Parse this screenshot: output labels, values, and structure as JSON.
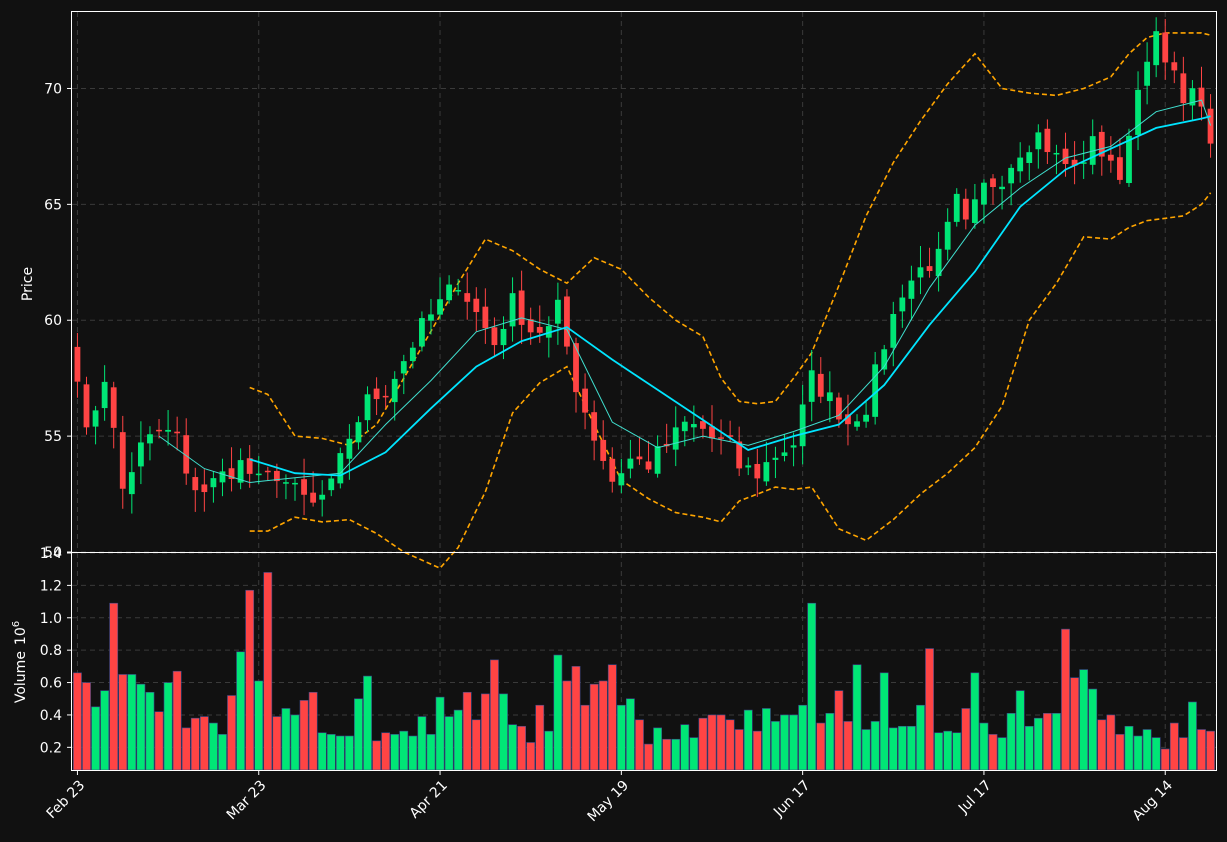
{
  "colors": {
    "background": "#111111",
    "up": "#00e676",
    "down": "#ff4444",
    "ma_fast": "#40e0d0",
    "ma_slow": "#00e5ff",
    "bands": "#ffa500",
    "grid": "#3a3a3a",
    "axes": "#ffffff"
  },
  "chart_data": [
    {
      "type": "candlestick",
      "panel": "price",
      "ylabel": "Price",
      "ylim": [
        50,
        73.3
      ],
      "yticks": [
        50,
        55,
        60,
        65,
        70
      ],
      "ytick_labels": [
        "50",
        "55",
        "60",
        "65",
        "70"
      ],
      "xlim": [
        -0.6,
        125.6
      ],
      "xticks": [
        0,
        20,
        40,
        60,
        80,
        100,
        120
      ],
      "xtick_labels": [
        "Feb 23",
        "Mar 23",
        "Apr 21",
        "May 19",
        "Jun 17",
        "Jul 17",
        "Aug 14"
      ],
      "grid": true,
      "ohlc_anchors": [
        [
          0,
          57.8
        ],
        [
          1,
          55.0
        ],
        [
          3,
          57.6
        ],
        [
          5,
          52.7
        ],
        [
          7,
          54.5
        ],
        [
          9,
          55.2
        ],
        [
          11,
          55.0
        ],
        [
          12,
          53.1
        ],
        [
          14,
          52.7
        ],
        [
          16,
          53.3
        ],
        [
          18,
          53.8
        ],
        [
          20,
          53.0
        ],
        [
          22,
          53.4
        ],
        [
          24,
          52.6
        ],
        [
          26,
          52.0
        ],
        [
          28,
          52.8
        ],
        [
          30,
          55.0
        ],
        [
          32,
          56.5
        ],
        [
          34,
          57.0
        ],
        [
          36,
          58.3
        ],
        [
          38,
          59.7
        ],
        [
          40,
          60.7
        ],
        [
          42,
          61.7
        ],
        [
          44,
          60.3
        ],
        [
          46,
          59.0
        ],
        [
          48,
          60.8
        ],
        [
          50,
          59.6
        ],
        [
          52,
          59.6
        ],
        [
          53,
          60.5
        ],
        [
          55,
          57.2
        ],
        [
          57,
          55.0
        ],
        [
          59,
          53.1
        ],
        [
          61,
          54.0
        ],
        [
          63,
          53.8
        ],
        [
          65,
          54.6
        ],
        [
          67,
          55.5
        ],
        [
          69,
          55.3
        ],
        [
          70,
          54.9
        ],
        [
          72,
          54.6
        ],
        [
          73,
          53.7
        ],
        [
          75,
          53.4
        ],
        [
          77,
          54.2
        ],
        [
          79,
          54.7
        ],
        [
          81,
          57.5
        ],
        [
          83,
          56.6
        ],
        [
          85,
          55.6
        ],
        [
          87,
          56.3
        ],
        [
          89,
          59.0
        ],
        [
          91,
          61.3
        ],
        [
          93,
          62.2
        ],
        [
          95,
          62.7
        ],
        [
          97,
          65.1
        ],
        [
          98,
          64.0
        ],
        [
          100,
          65.7
        ],
        [
          102,
          66.2
        ],
        [
          104,
          67.4
        ],
        [
          106,
          68.0
        ],
        [
          108,
          67.0
        ],
        [
          110,
          66.5
        ],
        [
          112,
          67.6
        ],
        [
          114,
          67.0
        ],
        [
          115,
          65.7
        ],
        [
          116,
          68.3
        ],
        [
          118,
          71.6
        ],
        [
          119,
          72.1
        ],
        [
          120,
          71.0
        ],
        [
          122,
          69.8
        ],
        [
          124,
          69.5
        ],
        [
          125,
          67.2
        ]
      ],
      "series": [
        {
          "name": "",
          "role": "ma-fast",
          "x": [
            9,
            14,
            19,
            24,
            29,
            34,
            39,
            44,
            49,
            54,
            59,
            64,
            69,
            74,
            79,
            84,
            89,
            94,
            99,
            104,
            109,
            114,
            119,
            124,
            125
          ],
          "values": [
            55.0,
            53.6,
            53.0,
            53.2,
            53.4,
            55.5,
            57.4,
            59.5,
            60.1,
            59.6,
            55.6,
            54.5,
            55.0,
            54.6,
            55.2,
            55.9,
            58.0,
            61.4,
            64.1,
            65.7,
            67.0,
            67.5,
            69.0,
            69.5,
            68.4
          ]
        },
        {
          "name": "",
          "role": "ma-slow",
          "x": [
            19,
            24,
            29,
            34,
            39,
            44,
            49,
            54,
            59,
            64,
            69,
            74,
            79,
            84,
            89,
            94,
            99,
            104,
            109,
            114,
            119,
            124,
            125
          ],
          "values": [
            54.0,
            53.4,
            53.3,
            54.3,
            56.2,
            58.0,
            59.1,
            59.7,
            58.3,
            57.0,
            55.7,
            54.4,
            55.0,
            55.5,
            57.2,
            59.8,
            62.1,
            64.9,
            66.5,
            67.4,
            68.3,
            68.7,
            68.8
          ]
        },
        {
          "name": "",
          "role": "upper-band",
          "x": [
            19,
            21,
            24,
            27,
            30,
            33,
            36,
            40,
            42,
            45,
            48,
            51,
            54,
            57,
            60,
            63,
            66,
            69,
            71,
            73,
            75,
            77,
            79,
            81,
            84,
            87,
            90,
            93,
            96,
            99,
            102,
            105,
            108,
            111,
            114,
            116,
            118,
            120,
            122,
            124,
            125
          ],
          "values": [
            57.1,
            56.8,
            55.0,
            54.9,
            54.6,
            55.5,
            57.5,
            60.2,
            61.6,
            63.5,
            63.0,
            62.2,
            61.6,
            62.7,
            62.2,
            61.0,
            60.0,
            59.3,
            57.5,
            56.5,
            56.4,
            56.5,
            57.5,
            58.6,
            61.5,
            64.5,
            66.8,
            68.6,
            70.2,
            71.5,
            70.0,
            69.8,
            69.7,
            70.0,
            70.5,
            71.5,
            72.2,
            72.4,
            72.4,
            72.4,
            72.3
          ]
        },
        {
          "name": "",
          "role": "lower-band",
          "x": [
            19,
            21,
            24,
            27,
            30,
            33,
            36,
            40,
            42,
            45,
            48,
            51,
            54,
            57,
            60,
            63,
            66,
            69,
            71,
            73,
            75,
            77,
            79,
            81,
            84,
            87,
            90,
            93,
            96,
            99,
            102,
            105,
            108,
            111,
            114,
            116,
            118,
            120,
            122,
            124,
            125
          ],
          "values": [
            50.9,
            50.9,
            51.5,
            51.3,
            51.4,
            50.8,
            50.0,
            49.3,
            50.2,
            52.6,
            56.0,
            57.3,
            58.0,
            55.5,
            53.1,
            52.3,
            51.7,
            51.5,
            51.3,
            52.2,
            52.5,
            52.8,
            52.7,
            52.8,
            51.0,
            50.5,
            51.4,
            52.5,
            53.4,
            54.5,
            56.3,
            60.0,
            61.6,
            63.6,
            63.5,
            64.0,
            64.3,
            64.4,
            64.5,
            65.0,
            65.5
          ]
        }
      ]
    },
    {
      "type": "bar",
      "panel": "volume",
      "ylabel": "Volume",
      "ylabel_exponent": "10",
      "ylabel_exponent_power": "6",
      "ylim": [
        0.06,
        1.4
      ],
      "yticks": [
        0.2,
        0.4,
        0.6,
        0.8,
        1.0,
        1.2,
        1.4
      ],
      "ytick_labels": [
        "0.2",
        "0.4",
        "0.6",
        "0.8",
        "1.0",
        "1.2",
        "1.4"
      ],
      "grid": true,
      "values": [
        0.66,
        0.6,
        0.45,
        0.55,
        1.09,
        0.65,
        0.65,
        0.59,
        0.54,
        0.42,
        0.6,
        0.67,
        0.32,
        0.38,
        0.39,
        0.35,
        0.28,
        0.52,
        0.79,
        1.17,
        0.61,
        1.28,
        0.39,
        0.44,
        0.4,
        0.49,
        0.54,
        0.29,
        0.28,
        0.27,
        0.27,
        0.5,
        0.64,
        0.24,
        0.29,
        0.28,
        0.3,
        0.27,
        0.39,
        0.28,
        0.51,
        0.39,
        0.43,
        0.54,
        0.37,
        0.53,
        0.74,
        0.53,
        0.34,
        0.33,
        0.23,
        0.46,
        0.3,
        0.77,
        0.61,
        0.7,
        0.46,
        0.59,
        0.61,
        0.71,
        0.46,
        0.5,
        0.37,
        0.22,
        0.32,
        0.25,
        0.25,
        0.34,
        0.26,
        0.38,
        0.4,
        0.4,
        0.37,
        0.31,
        0.43,
        0.3,
        0.44,
        0.36,
        0.4,
        0.4,
        0.46,
        1.09,
        0.35,
        0.41,
        0.55,
        0.36,
        0.71,
        0.31,
        0.36,
        0.66,
        0.32,
        0.33,
        0.33,
        0.46,
        0.81,
        0.29,
        0.3,
        0.29,
        0.44,
        0.66,
        0.35,
        0.28,
        0.26,
        0.41,
        0.55,
        0.33,
        0.38,
        0.41,
        0.41,
        0.93,
        0.63,
        0.68,
        0.56,
        0.37,
        0.4,
        0.28,
        0.33,
        0.27,
        0.31,
        0.26,
        0.19,
        0.35,
        0.26,
        0.48,
        0.31,
        0.3
      ]
    }
  ]
}
